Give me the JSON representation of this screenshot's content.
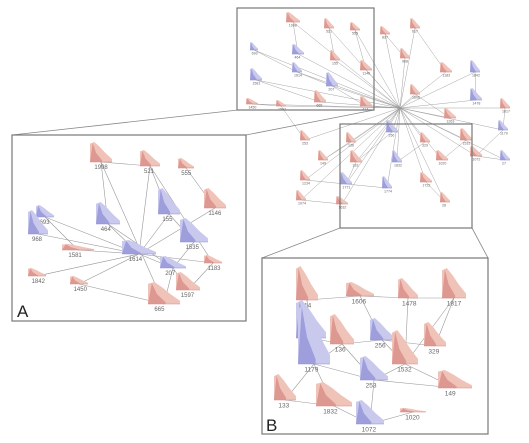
{
  "colors": {
    "blue": "#8f8fd6",
    "blue_light": "#c9c9ee",
    "red": "#d88a86",
    "red_light": "#f0c3b9",
    "edge": "#9a9a9a",
    "box": "#777777",
    "label": "#666666"
  },
  "overview": {
    "labels": [
      "1998",
      "521",
      "555",
      "837",
      "617",
      "693",
      "464",
      "155",
      "1146",
      "968",
      "1581",
      "1614",
      "207",
      "1183",
      "1842",
      "1450",
      "1597",
      "665",
      "414",
      "1606",
      "1478",
      "1817",
      "1263",
      "136",
      "256",
      "329",
      "1532",
      "1179",
      "253",
      "149",
      "133",
      "1832",
      "1020",
      "1072",
      "27",
      "1234",
      "1771",
      "1774",
      "1722",
      "1074",
      "1632",
      "28"
    ]
  },
  "panel_a": {
    "letter": "A",
    "nodes": [
      {
        "label": "1998",
        "tone": "red"
      },
      {
        "label": "521",
        "tone": "red"
      },
      {
        "label": "555",
        "tone": "red"
      },
      {
        "label": "693",
        "tone": "blue"
      },
      {
        "label": "464",
        "tone": "blue"
      },
      {
        "label": "155",
        "tone": "blue"
      },
      {
        "label": "1146",
        "tone": "red"
      },
      {
        "label": "968",
        "tone": "blue"
      },
      {
        "label": "1581",
        "tone": "red"
      },
      {
        "label": "1614",
        "tone": "blue"
      },
      {
        "label": "1535",
        "tone": "blue"
      },
      {
        "label": "207",
        "tone": "blue"
      },
      {
        "label": "1183",
        "tone": "red"
      },
      {
        "label": "1842",
        "tone": "red"
      },
      {
        "label": "1450",
        "tone": "red"
      },
      {
        "label": "1597",
        "tone": "red"
      },
      {
        "label": "665",
        "tone": "red"
      }
    ]
  },
  "panel_b": {
    "letter": "B",
    "nodes": [
      {
        "label": "414",
        "tone": "red"
      },
      {
        "label": "1606",
        "tone": "red"
      },
      {
        "label": "1478",
        "tone": "red"
      },
      {
        "label": "1817",
        "tone": "red"
      },
      {
        "label": "1263",
        "tone": "blue"
      },
      {
        "label": "136",
        "tone": "red"
      },
      {
        "label": "256",
        "tone": "blue"
      },
      {
        "label": "329",
        "tone": "red"
      },
      {
        "label": "1532",
        "tone": "red"
      },
      {
        "label": "1179",
        "tone": "blue"
      },
      {
        "label": "253",
        "tone": "blue"
      },
      {
        "label": "149",
        "tone": "red"
      },
      {
        "label": "133",
        "tone": "red"
      },
      {
        "label": "1832",
        "tone": "red"
      },
      {
        "label": "1020",
        "tone": "red"
      },
      {
        "label": "1072",
        "tone": "blue"
      }
    ]
  }
}
